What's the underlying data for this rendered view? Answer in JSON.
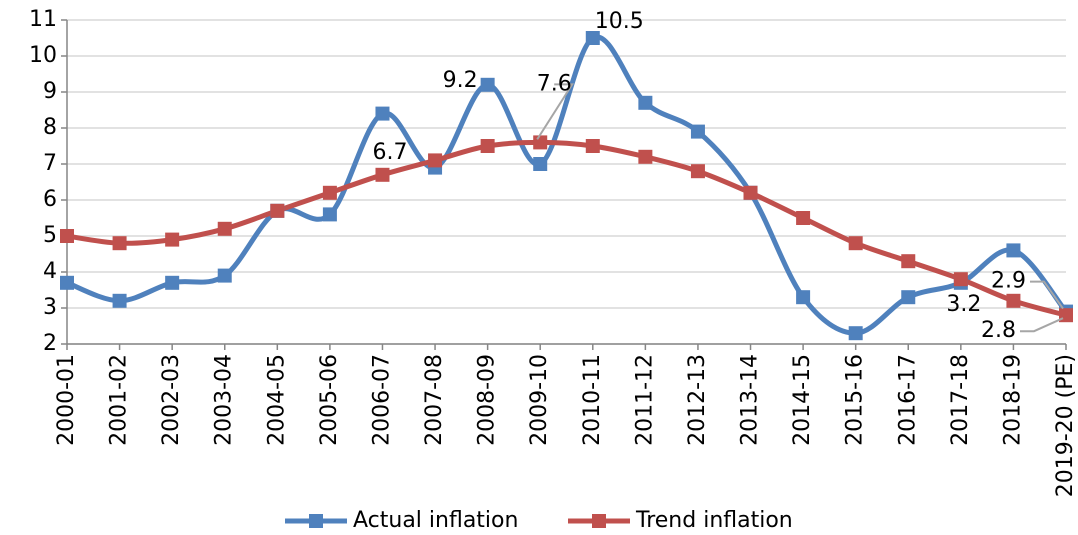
{
  "chart_data": {
    "type": "line",
    "categories": [
      "2000-01",
      "2001-02",
      "2002-03",
      "2003-04",
      "2004-05",
      "2005-06",
      "2006-07",
      "2007-08",
      "2008-09",
      "2009-10",
      "2010-11",
      "2011-12",
      "2012-13",
      "2013-14",
      "2014-15",
      "2015-16",
      "2016-17",
      "2017-18",
      "2018-19",
      "2019-20 (PE)"
    ],
    "series": [
      {
        "name": "Actual inflation",
        "color": "#4f81bd",
        "values": [
          3.7,
          3.2,
          3.7,
          3.9,
          5.7,
          5.6,
          8.4,
          6.9,
          9.2,
          7.0,
          10.5,
          8.7,
          7.9,
          6.2,
          3.3,
          2.3,
          3.3,
          3.7,
          4.6,
          2.9
        ],
        "value_labels": [
          null,
          null,
          null,
          null,
          null,
          null,
          null,
          null,
          "9.2",
          null,
          "10.5",
          null,
          null,
          null,
          null,
          null,
          null,
          null,
          null,
          "2.9"
        ]
      },
      {
        "name": "Trend inflation",
        "color": "#c0504d",
        "values": [
          5.0,
          4.8,
          4.9,
          5.2,
          5.7,
          6.2,
          6.7,
          7.1,
          7.5,
          7.6,
          7.5,
          7.2,
          6.8,
          6.2,
          5.5,
          4.8,
          4.3,
          3.8,
          3.2,
          2.8
        ],
        "value_labels": [
          null,
          null,
          null,
          null,
          null,
          null,
          "6.7",
          null,
          null,
          "7.6",
          null,
          null,
          null,
          null,
          null,
          null,
          null,
          null,
          "3.2",
          "2.8"
        ]
      }
    ],
    "ylim": [
      2,
      11
    ],
    "yticks": [
      2,
      3,
      4,
      5,
      6,
      7,
      8,
      9,
      10,
      11
    ],
    "grid": true,
    "smooth": true,
    "legend": "bottom"
  }
}
